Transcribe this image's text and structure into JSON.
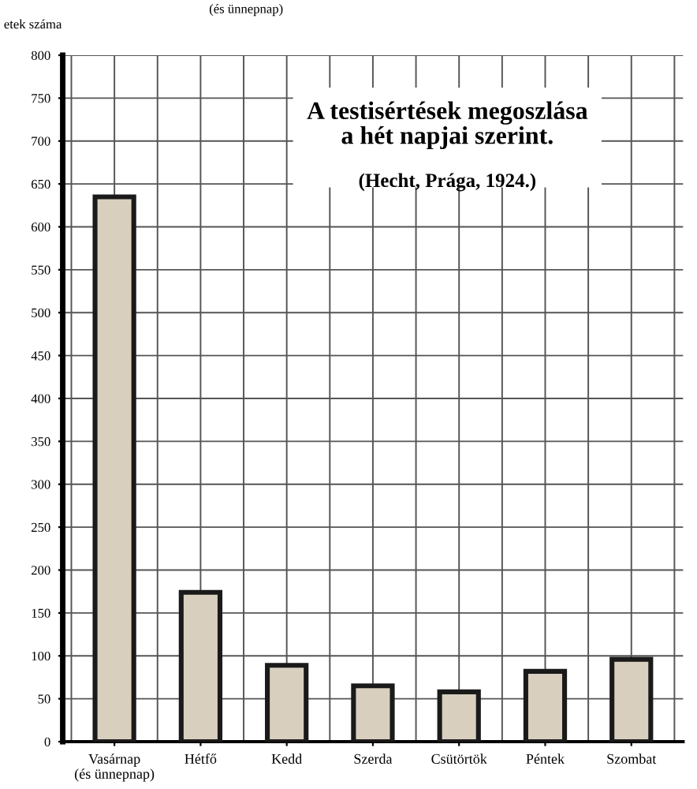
{
  "chart_data": {
    "type": "bar",
    "title": "A testisértések megoszlása\na hét napjai szerint.",
    "subtitle": "(Hecht, Prága, 1924.)",
    "ylabel": "etek száma",
    "annotations": [
      "(és ünnepnap)"
    ],
    "categories": [
      "Vasárnap\n(és ünnepnap)",
      "Hétfő",
      "Kedd",
      "Szerda",
      "Csütörtök",
      "Péntek",
      "Szombat"
    ],
    "values": [
      635,
      174,
      89,
      65,
      58,
      82,
      96
    ],
    "color": "#d8cfbf",
    "ylim": [
      0,
      800
    ],
    "yticks": [
      0,
      50,
      100,
      150,
      200,
      250,
      300,
      350,
      400,
      450,
      500,
      550,
      600,
      650,
      700,
      750,
      800
    ],
    "grid": true
  }
}
